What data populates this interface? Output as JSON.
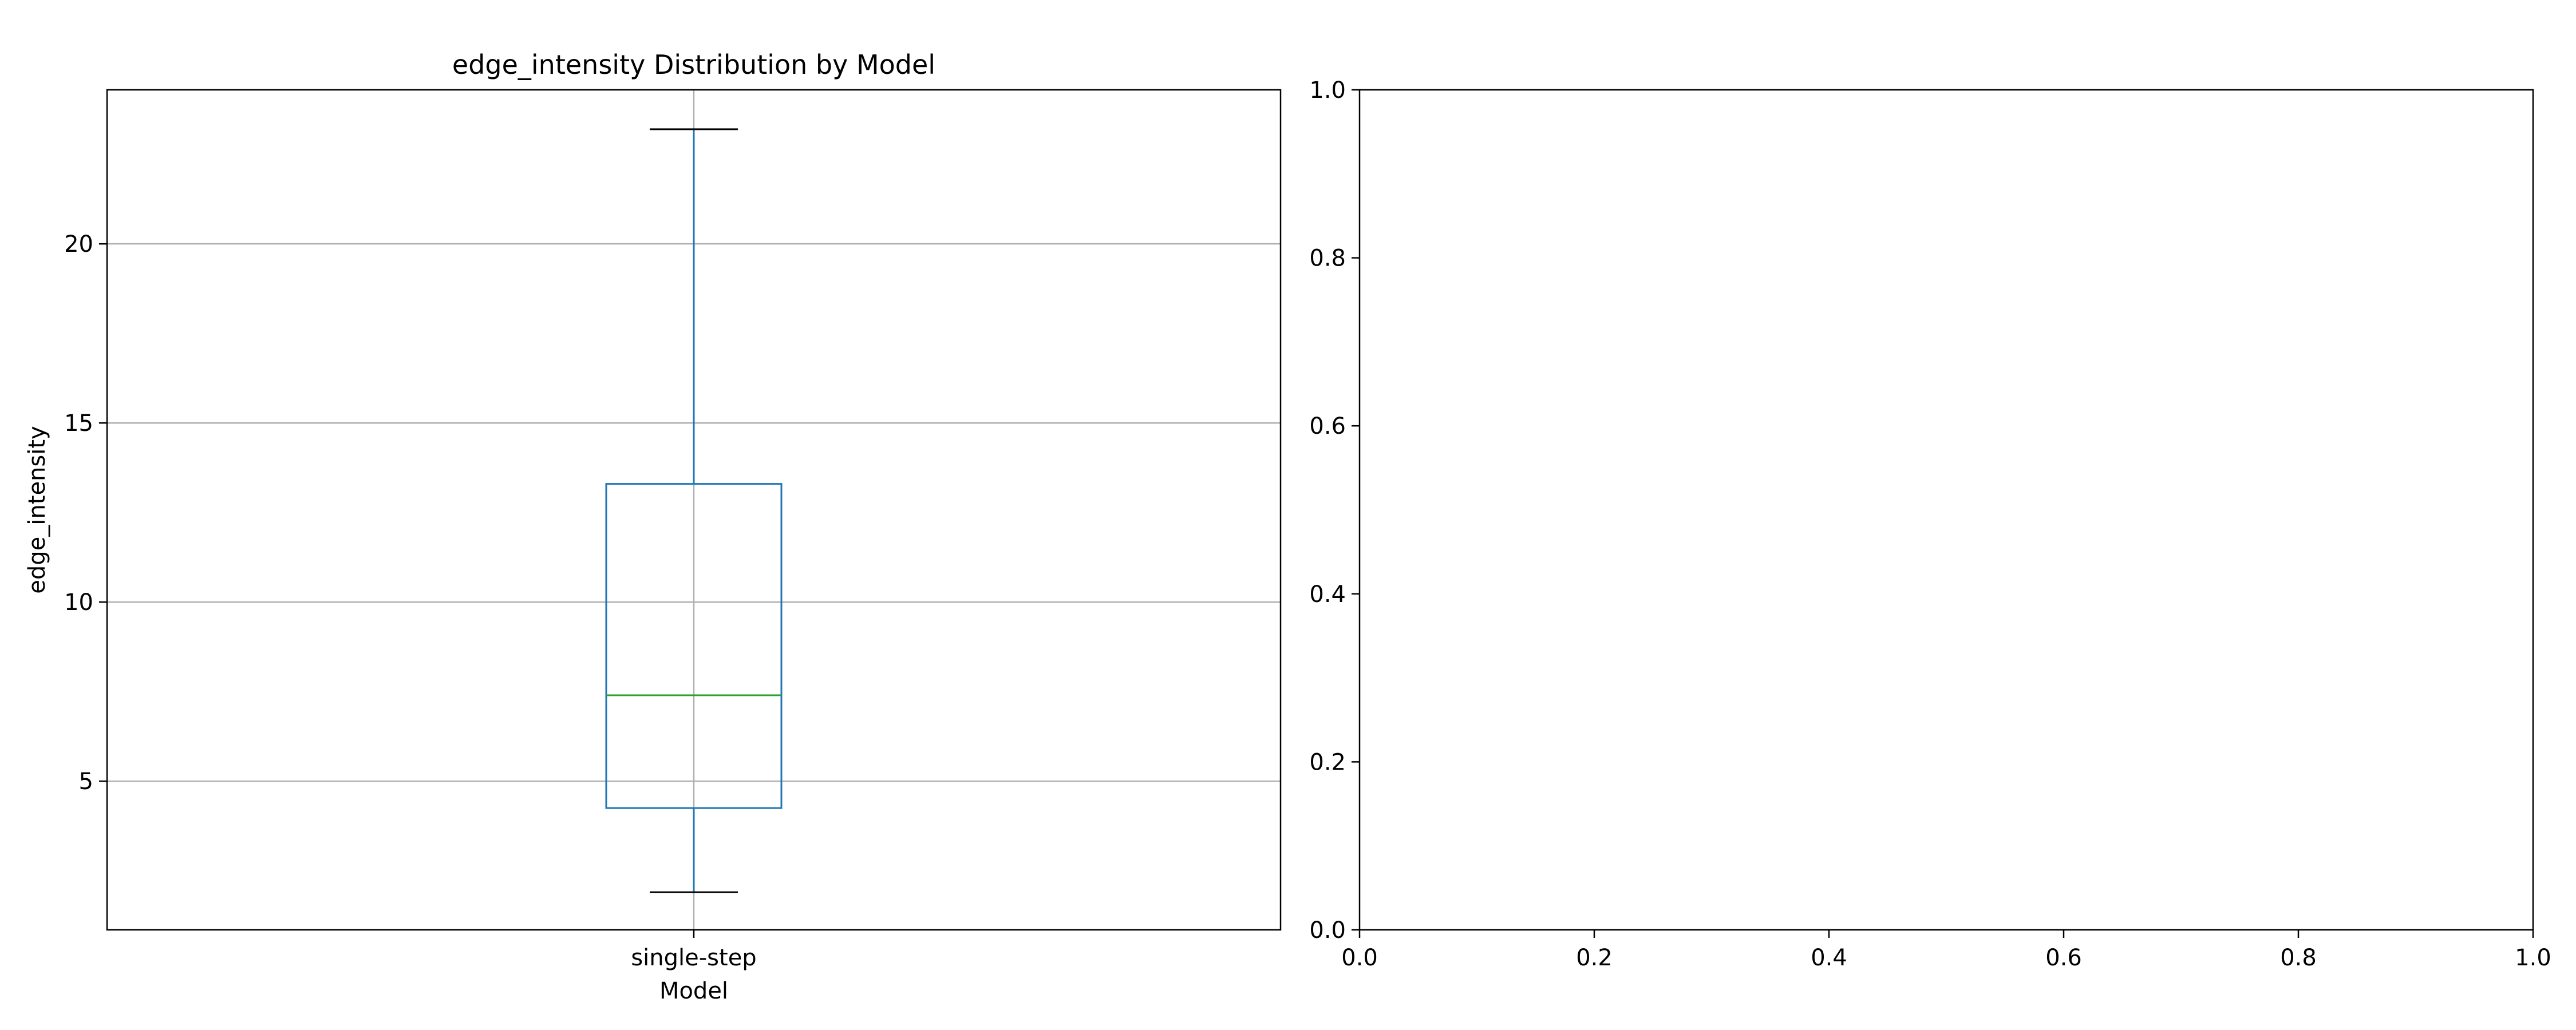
{
  "colors": {
    "box": "#1f77b4",
    "median": "#2ca02c",
    "caps": "#000000",
    "grid": "#b0b0b0",
    "spine": "#000000",
    "background": "#ffffff"
  },
  "chart_data": [
    {
      "type": "box",
      "title": "edge_intensity Distribution by Model",
      "xlabel": "Model",
      "ylabel": "edge_intensity",
      "categories": [
        "single-step"
      ],
      "boxes": [
        {
          "category": "single-step",
          "whisker_low": 1.9,
          "q1": 4.25,
          "median": 7.4,
          "q3": 13.3,
          "whisker_high": 23.2
        }
      ],
      "ylim": [
        0.85,
        24.3
      ],
      "yticks": [
        5,
        10,
        15,
        20
      ],
      "grid": true,
      "legend": "none"
    },
    {
      "type": "empty",
      "title": "",
      "xlim": [
        0,
        1
      ],
      "ylim": [
        0,
        1
      ],
      "xticks": [
        "0.0",
        "0.2",
        "0.4",
        "0.6",
        "0.8",
        "1.0"
      ],
      "yticks": [
        "0.0",
        "0.2",
        "0.4",
        "0.6",
        "0.8",
        "1.0"
      ],
      "grid": false
    }
  ]
}
